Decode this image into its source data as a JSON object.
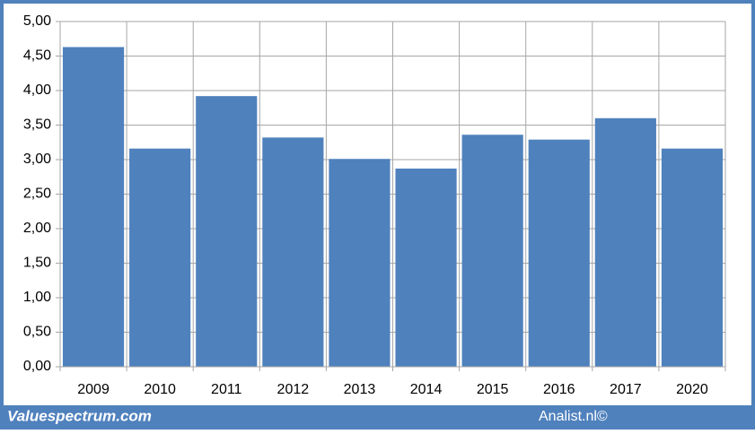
{
  "chart_data": {
    "type": "bar",
    "categories": [
      "2009",
      "2010",
      "2011",
      "2012",
      "2013",
      "2014",
      "2015",
      "2016",
      "2017",
      "2020"
    ],
    "values": [
      4.63,
      3.16,
      3.92,
      3.32,
      3.01,
      2.87,
      3.36,
      3.29,
      3.6,
      3.16
    ],
    "color": "#4f81bd",
    "ylim": [
      0,
      5
    ],
    "yticks": [
      {
        "value": 0,
        "label": "0,00"
      },
      {
        "value": 0.5,
        "label": "0,50"
      },
      {
        "value": 1,
        "label": "1,00"
      },
      {
        "value": 1.5,
        "label": "1,50"
      },
      {
        "value": 2,
        "label": "2,00"
      },
      {
        "value": 2.5,
        "label": "2,50"
      },
      {
        "value": 3,
        "label": "3,00"
      },
      {
        "value": 3.5,
        "label": "3,50"
      },
      {
        "value": 4,
        "label": "4,00"
      },
      {
        "value": 4.5,
        "label": "4,50"
      },
      {
        "value": 5,
        "label": "5,00"
      }
    ],
    "grid": true,
    "annotations": [
      "Valuespectrum.com",
      "Analist.nl©"
    ]
  }
}
